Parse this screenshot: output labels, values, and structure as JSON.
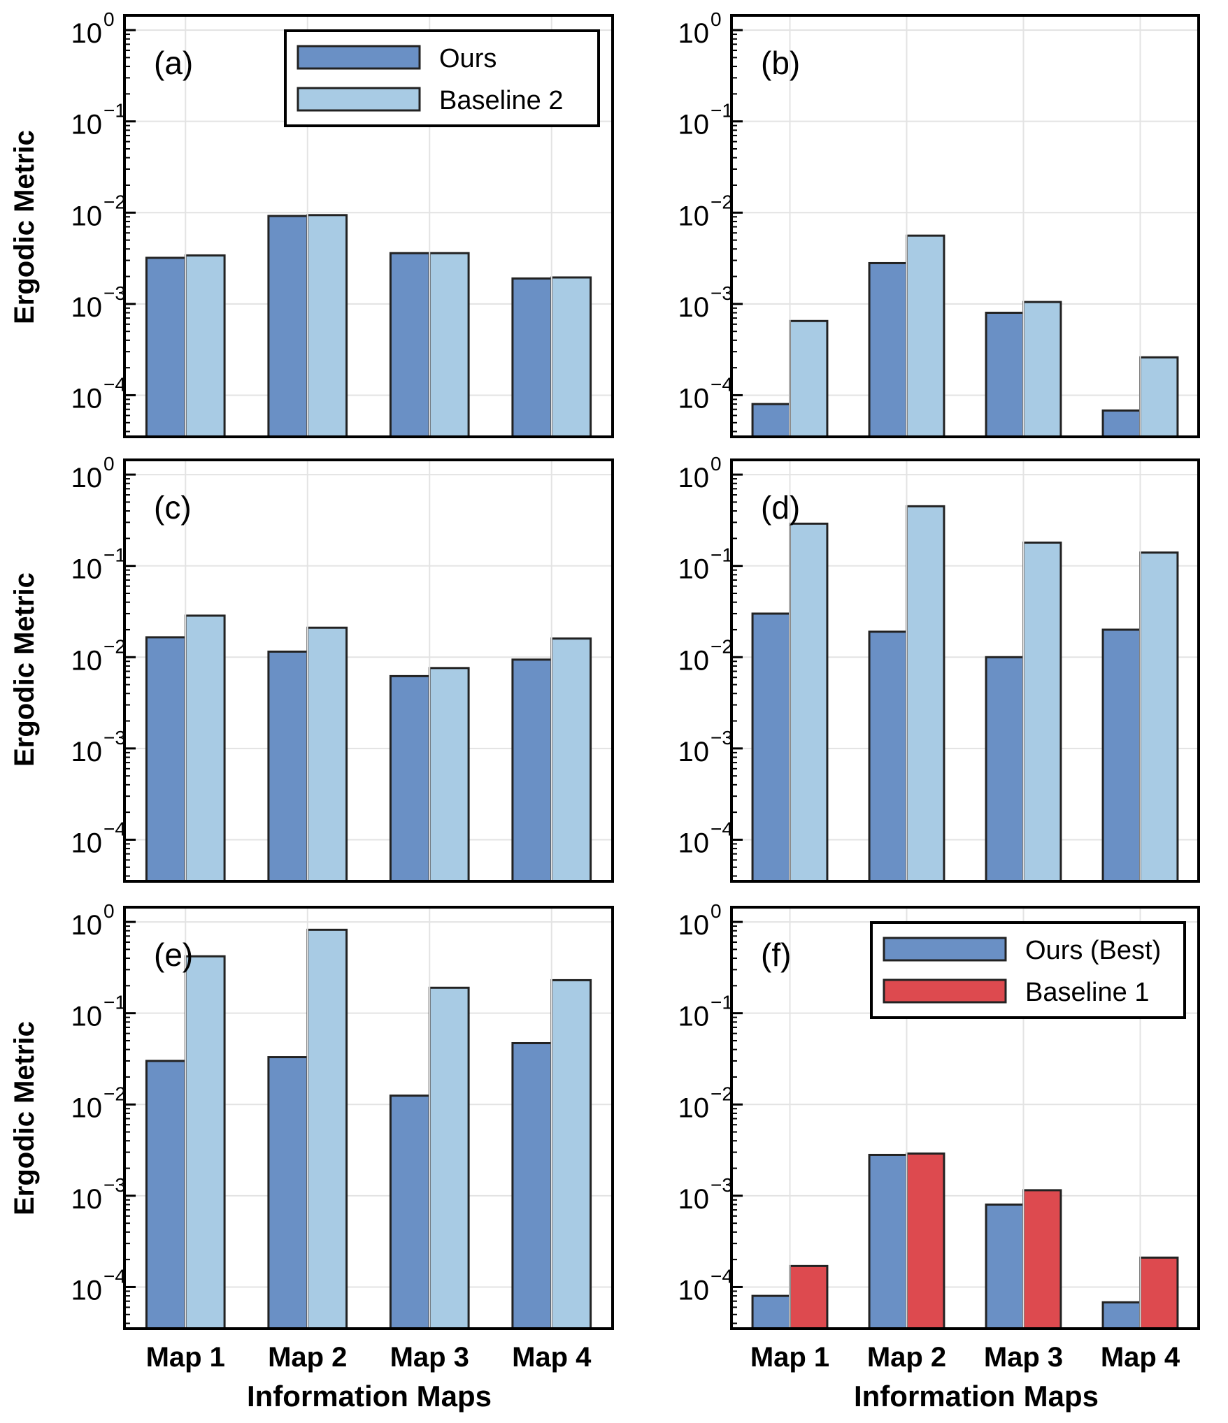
{
  "figure": {
    "y_axis_label": "Ergodic Metric",
    "x_axis_label": "Information Maps"
  },
  "colors": {
    "ours": "#6a90c5",
    "baseline2": "#a8cbe4",
    "baseline1": "#dd4a4f",
    "edge": "#222222",
    "grid": "#e3e3e3"
  },
  "chart_data": [
    {
      "type": "bar",
      "panel": "(a)",
      "categories": [
        "Map 1",
        "Map 2",
        "Map 3",
        "Map 4"
      ],
      "series": [
        {
          "name": "Ours",
          "color_key": "ours",
          "values": [
            0.0032,
            0.0092,
            0.0036,
            0.0019
          ]
        },
        {
          "name": "Baseline 2",
          "color_key": "baseline2",
          "values": [
            0.0034,
            0.0094,
            0.0036,
            0.00195
          ]
        }
      ],
      "legend": {
        "position": "top-right",
        "entries": [
          "Ours",
          "Baseline 2"
        ]
      },
      "yscale": "log",
      "ylim": [
        3.5e-05,
        1.45
      ],
      "grid": true,
      "yticks": [
        {
          "base": "10",
          "exp": "0"
        },
        {
          "base": "10",
          "exp": "−1"
        },
        {
          "base": "10",
          "exp": "−2"
        },
        {
          "base": "10",
          "exp": "−3"
        },
        {
          "base": "10",
          "exp": "−4"
        }
      ]
    },
    {
      "type": "bar",
      "panel": "(b)",
      "categories": [
        "Map 1",
        "Map 2",
        "Map 3",
        "Map 4"
      ],
      "series": [
        {
          "name": "Ours",
          "color_key": "ours",
          "values": [
            8e-05,
            0.0028,
            0.0008,
            6.8e-05
          ]
        },
        {
          "name": "Baseline 2",
          "color_key": "baseline2",
          "values": [
            0.00065,
            0.0056,
            0.00105,
            0.00026
          ]
        }
      ],
      "yscale": "log",
      "ylim": [
        3.5e-05,
        1.45
      ],
      "grid": true,
      "yticks": [
        {
          "base": "10",
          "exp": "0"
        },
        {
          "base": "10",
          "exp": "−1"
        },
        {
          "base": "10",
          "exp": "−2"
        },
        {
          "base": "10",
          "exp": "−3"
        },
        {
          "base": "10",
          "exp": "−4"
        }
      ]
    },
    {
      "type": "bar",
      "panel": "(c)",
      "categories": [
        "Map 1",
        "Map 2",
        "Map 3",
        "Map 4"
      ],
      "series": [
        {
          "name": "Ours",
          "color_key": "ours",
          "values": [
            0.0165,
            0.0115,
            0.0062,
            0.0094
          ]
        },
        {
          "name": "Baseline 2",
          "color_key": "baseline2",
          "values": [
            0.0285,
            0.021,
            0.0076,
            0.016
          ]
        }
      ],
      "yscale": "log",
      "ylim": [
        3.5e-05,
        1.45
      ],
      "grid": true,
      "yticks": [
        {
          "base": "10",
          "exp": "0"
        },
        {
          "base": "10",
          "exp": "−1"
        },
        {
          "base": "10",
          "exp": "−2"
        },
        {
          "base": "10",
          "exp": "−3"
        },
        {
          "base": "10",
          "exp": "−4"
        }
      ]
    },
    {
      "type": "bar",
      "panel": "(d)",
      "categories": [
        "Map 1",
        "Map 2",
        "Map 3",
        "Map 4"
      ],
      "series": [
        {
          "name": "Ours",
          "color_key": "ours",
          "values": [
            0.03,
            0.019,
            0.01,
            0.02
          ]
        },
        {
          "name": "Baseline 2",
          "color_key": "baseline2",
          "values": [
            0.29,
            0.45,
            0.18,
            0.14
          ]
        }
      ],
      "yscale": "log",
      "ylim": [
        3.5e-05,
        1.45
      ],
      "grid": true,
      "yticks": [
        {
          "base": "10",
          "exp": "0"
        },
        {
          "base": "10",
          "exp": "−1"
        },
        {
          "base": "10",
          "exp": "−2"
        },
        {
          "base": "10",
          "exp": "−3"
        },
        {
          "base": "10",
          "exp": "−4"
        }
      ]
    },
    {
      "type": "bar",
      "panel": "(e)",
      "categories": [
        "Map 1",
        "Map 2",
        "Map 3",
        "Map 4"
      ],
      "series": [
        {
          "name": "Ours",
          "color_key": "ours",
          "values": [
            0.03,
            0.033,
            0.0125,
            0.047
          ]
        },
        {
          "name": "Baseline 2",
          "color_key": "baseline2",
          "values": [
            0.42,
            0.82,
            0.19,
            0.23
          ]
        }
      ],
      "xlabel": "Information Maps",
      "yscale": "log",
      "ylim": [
        3.5e-05,
        1.45
      ],
      "grid": true,
      "yticks": [
        {
          "base": "10",
          "exp": "0"
        },
        {
          "base": "10",
          "exp": "−1"
        },
        {
          "base": "10",
          "exp": "−2"
        },
        {
          "base": "10",
          "exp": "−3"
        },
        {
          "base": "10",
          "exp": "−4"
        }
      ]
    },
    {
      "type": "bar",
      "panel": "(f)",
      "categories": [
        "Map 1",
        "Map 2",
        "Map 3",
        "Map 4"
      ],
      "series": [
        {
          "name": "Ours (Best)",
          "color_key": "ours",
          "values": [
            8e-05,
            0.0028,
            0.0008,
            6.8e-05
          ]
        },
        {
          "name": "Baseline 1",
          "color_key": "baseline1",
          "values": [
            0.00017,
            0.0029,
            0.00115,
            0.00021
          ]
        }
      ],
      "legend": {
        "position": "top-right",
        "entries": [
          "Ours (Best)",
          "Baseline 1"
        ]
      },
      "xlabel": "Information Maps",
      "yscale": "log",
      "ylim": [
        3.5e-05,
        1.45
      ],
      "grid": true,
      "yticks": [
        {
          "base": "10",
          "exp": "0"
        },
        {
          "base": "10",
          "exp": "−1"
        },
        {
          "base": "10",
          "exp": "−2"
        },
        {
          "base": "10",
          "exp": "−3"
        },
        {
          "base": "10",
          "exp": "−4"
        }
      ]
    }
  ]
}
